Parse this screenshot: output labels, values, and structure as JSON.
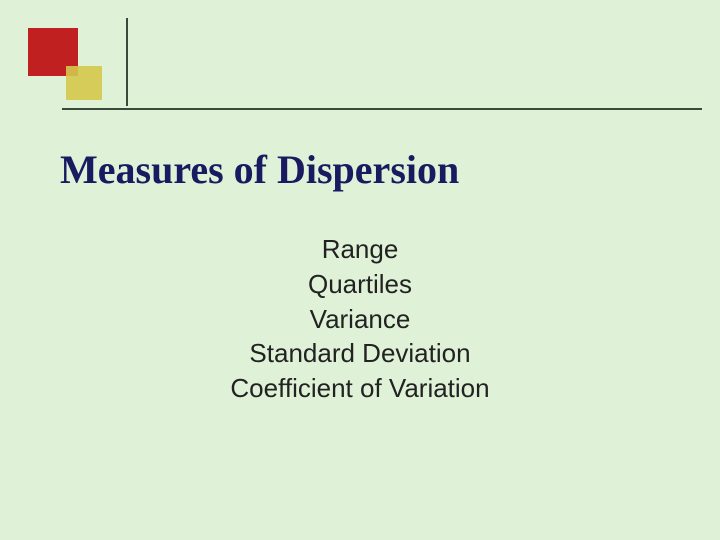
{
  "colors": {
    "background": "#dff2d8",
    "square_primary": "#c02020",
    "square_secondary": "#d4c84c",
    "rule": "#3a4a3a",
    "title": "#1a1a60",
    "body_text": "#222222"
  },
  "typography": {
    "title_font": "Times New Roman",
    "title_size_pt": 30,
    "title_weight": "bold",
    "body_font": "Arial",
    "body_size_pt": 20
  },
  "title": "Measures of Dispersion",
  "items": [
    "Range",
    "Quartiles",
    "Variance",
    "Standard Deviation",
    "Coefficient of Variation"
  ]
}
